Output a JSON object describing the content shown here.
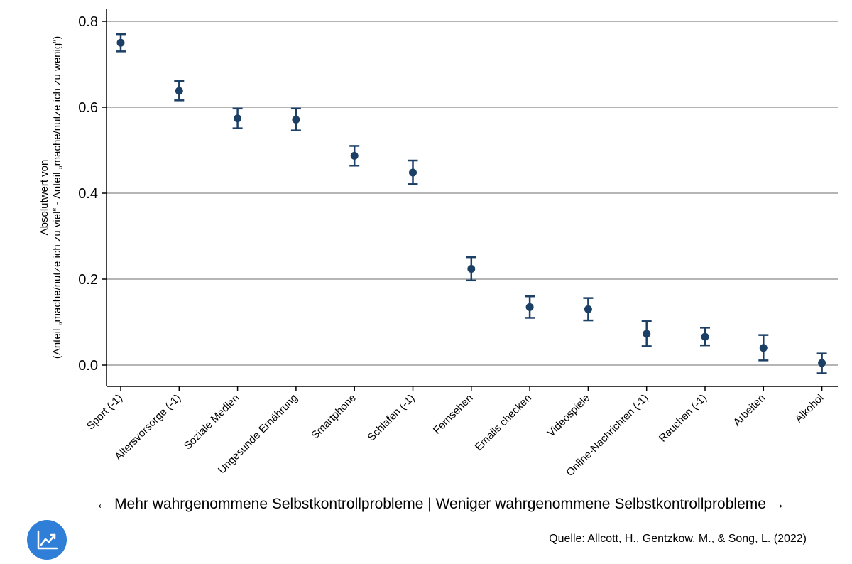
{
  "chart_data": {
    "type": "scatter",
    "subtype": "point-with-error-bars",
    "categories": [
      "Sport (-1)",
      "Altersvorsorge (-1)",
      "Soziale Medien",
      "Ungesunde Ernährung",
      "Smartphone",
      "Schlafen (-1)",
      "Fernsehen",
      "Emails checken",
      "Videospiele",
      "Online-Nachrichten (-1)",
      "Rauchen (-1)",
      "Arbeiten",
      "Alkohol"
    ],
    "values": [
      0.75,
      0.638,
      0.574,
      0.571,
      0.487,
      0.448,
      0.224,
      0.135,
      0.13,
      0.073,
      0.066,
      0.04,
      0.005
    ],
    "ci_low": [
      0.73,
      0.616,
      0.551,
      0.546,
      0.464,
      0.421,
      0.197,
      0.11,
      0.104,
      0.044,
      0.046,
      0.011,
      -0.019
    ],
    "ci_high": [
      0.77,
      0.661,
      0.597,
      0.597,
      0.51,
      0.476,
      0.251,
      0.16,
      0.156,
      0.102,
      0.087,
      0.07,
      0.027
    ],
    "ylim": [
      -0.05,
      0.83
    ],
    "yticks": [
      0.0,
      0.2,
      0.4,
      0.6,
      0.8
    ],
    "ytick_labels": [
      "0.0",
      "0.2",
      "0.4",
      "0.6",
      "0.8"
    ],
    "ylabel_line1": "Absolutwert von",
    "ylabel_line2": "(Anteil „mache/nutze ich zu viel“ - Anteil „mache/nutze ich zu wenig“)",
    "xlabel": "← Mehr wahrgenommene Selbstkontrollprobleme | Weniger wahrgenommene Selbstkontrollprobleme →",
    "grid": true,
    "point_color": "#1c3f66",
    "grid_color": "#b5b5b5"
  },
  "footer": {
    "source": "Quelle: Allcott, H., Gentzkow, M., & Song, L. (2022)"
  },
  "logo": {
    "icon": "trend-chart-icon",
    "color": "#2f7fd8"
  }
}
